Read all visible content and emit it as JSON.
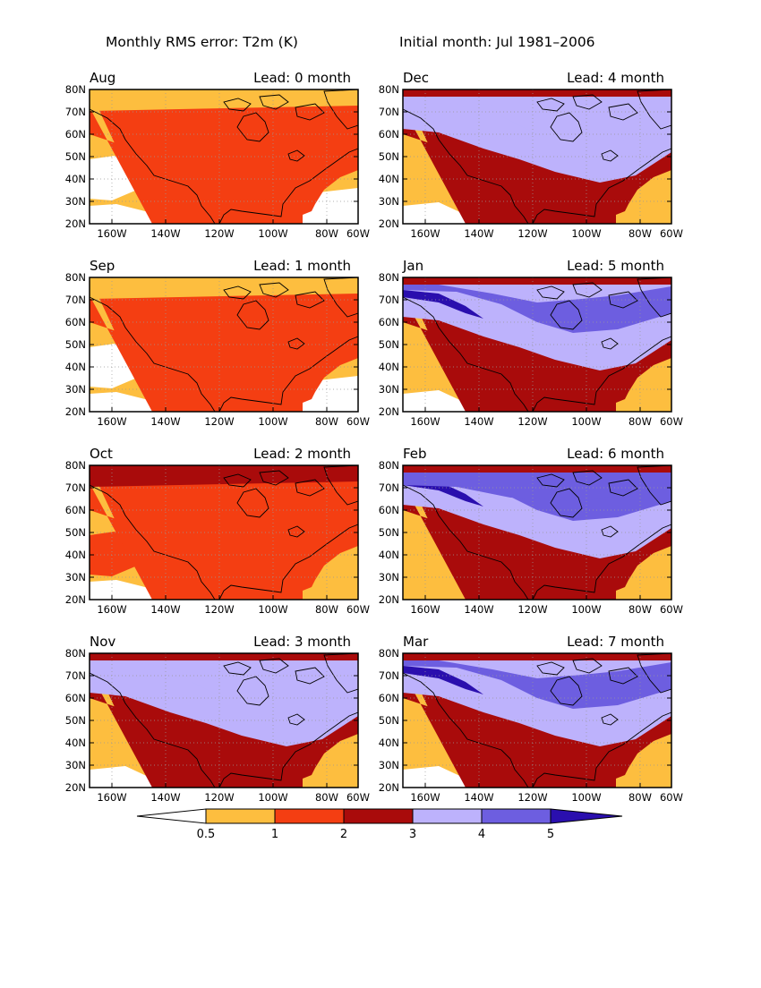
{
  "header": {
    "title_left": "Monthly RMS error: T2m (K)",
    "title_right": "Initial month: Jul 1981–2006"
  },
  "lat_ticks": [
    "80N",
    "70N",
    "60N",
    "50N",
    "40N",
    "30N",
    "20N"
  ],
  "lon_ticks": [
    "160W",
    "140W",
    "120W",
    "100W",
    "80W",
    "60W"
  ],
  "panels": [
    {
      "month": "Aug",
      "lead": "Lead: 0 month",
      "level": 2
    },
    {
      "month": "Dec",
      "lead": "Lead: 4 month",
      "level": 4
    },
    {
      "month": "Sep",
      "lead": "Lead: 1 month",
      "level": 2
    },
    {
      "month": "Jan",
      "lead": "Lead: 5 month",
      "level": 5
    },
    {
      "month": "Oct",
      "lead": "Lead: 2 month",
      "level": 3
    },
    {
      "month": "Feb",
      "lead": "Lead: 6 month",
      "level": 6
    },
    {
      "month": "Nov",
      "lead": "Lead: 3 month",
      "level": 4
    },
    {
      "month": "Mar",
      "lead": "Lead: 7 month",
      "level": 5
    }
  ],
  "colorbar": {
    "labels": [
      "0.5",
      "1",
      "2",
      "3",
      "4",
      "5"
    ],
    "colors": [
      "#ffffff",
      "#fdbe3f",
      "#f43e12",
      "#a90b0b",
      "#bdb2fc",
      "#6d5ee0",
      "#2a0fae"
    ]
  }
}
